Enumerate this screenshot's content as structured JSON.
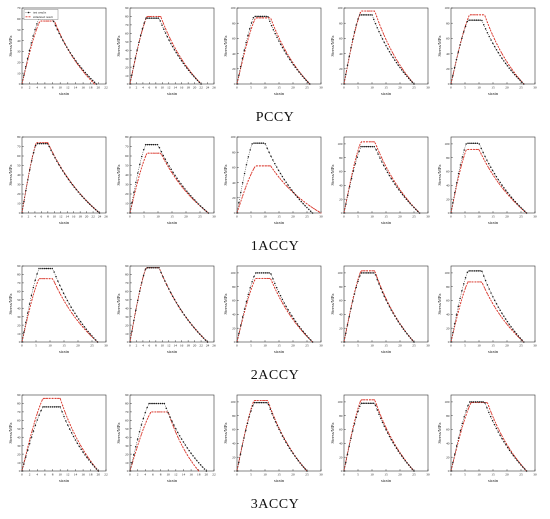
{
  "legend": {
    "test_label": "test results",
    "sim_label": "simulated result"
  },
  "colors": {
    "test": "#1a1a1a",
    "sim": "#d9362b"
  },
  "axis_text": {
    "xlabel": "strain",
    "ylabel": "Stress/MPa"
  },
  "groups": [
    "PCCY",
    "1ACCY",
    "2ACCY",
    "3ACCY"
  ],
  "chart_data": {
    "type": "line",
    "title": "",
    "xlabel": "strain",
    "ylabel": "Stress/MPa",
    "series_names": [
      "test results",
      "simulated result"
    ],
    "legend_position": "top-left of first panel",
    "grid": false,
    "panels": [
      {
        "group": "PCCY",
        "xmax": 22,
        "xticks": [
          0,
          2,
          4,
          6,
          8,
          10,
          12,
          14,
          16,
          18,
          20,
          22
        ],
        "ymax": 70,
        "yticks": [
          0,
          10,
          20,
          30,
          40,
          50,
          60,
          70
        ],
        "test_peak": 60,
        "test_pk": 8,
        "test_end": 19.5,
        "sim_peak": 58,
        "sim_pk": 8.5,
        "sim_end": 19
      },
      {
        "group": "PCCY",
        "xmax": 26,
        "xticks": [
          0,
          2,
          4,
          6,
          8,
          10,
          12,
          14,
          16,
          18,
          20,
          22,
          24,
          26
        ],
        "ymax": 90,
        "yticks": [
          0,
          10,
          20,
          30,
          40,
          50,
          60,
          70,
          80,
          90
        ],
        "test_peak": 78,
        "test_pk": 9,
        "test_end": 22,
        "sim_peak": 80,
        "sim_pk": 9.5,
        "sim_end": 22
      },
      {
        "group": "PCCY",
        "xmax": 30,
        "xticks": [
          0,
          5,
          10,
          15,
          20,
          25,
          30
        ],
        "ymax": 100,
        "yticks": [
          0,
          20,
          40,
          60,
          80,
          100
        ],
        "test_peak": 89,
        "test_pk": 11,
        "test_end": 26,
        "sim_peak": 87,
        "sim_pk": 12,
        "sim_end": 26
      },
      {
        "group": "PCCY",
        "xmax": 30,
        "xticks": [
          0,
          5,
          10,
          15,
          20,
          25,
          30
        ],
        "ymax": 100,
        "yticks": [
          0,
          20,
          40,
          60,
          80,
          100
        ],
        "test_peak": 91,
        "test_pk": 10,
        "test_end": 25,
        "sim_peak": 96,
        "sim_pk": 11,
        "sim_end": 25
      },
      {
        "group": "PCCY",
        "xmax": 30,
        "xticks": [
          0,
          5,
          10,
          15,
          20,
          25,
          30
        ],
        "ymax": 100,
        "yticks": [
          0,
          20,
          40,
          60,
          80,
          100
        ],
        "test_peak": 84,
        "test_pk": 11,
        "test_end": 26,
        "sim_peak": 91,
        "sim_pk": 12,
        "sim_end": 26
      },
      {
        "group": "1ACCY",
        "xmax": 26,
        "xticks": [
          0,
          2,
          4,
          6,
          8,
          10,
          12,
          14,
          16,
          18,
          20,
          22,
          24,
          26
        ],
        "ymax": 80,
        "yticks": [
          0,
          10,
          20,
          30,
          40,
          50,
          60,
          70,
          80
        ],
        "test_peak": 73,
        "test_pk": 8,
        "test_end": 24,
        "sim_peak": 74,
        "sim_pk": 8,
        "sim_end": 24
      },
      {
        "group": "1ACCY",
        "xmax": 30,
        "xticks": [
          0,
          5,
          10,
          15,
          20,
          25,
          30
        ],
        "ymax": 80,
        "yticks": [
          0,
          10,
          20,
          30,
          40,
          50,
          60,
          70,
          80
        ],
        "test_peak": 72,
        "test_pk": 10,
        "test_end": 28,
        "sim_peak": 63,
        "sim_pk": 11,
        "sim_end": 28
      },
      {
        "group": "1ACCY",
        "xmax": 30,
        "xticks": [
          0,
          5,
          10,
          15,
          20,
          25,
          30
        ],
        "ymax": 100,
        "yticks": [
          0,
          20,
          40,
          60,
          80,
          100
        ],
        "test_peak": 92,
        "test_pk": 10,
        "test_end": 27,
        "sim_peak": 62,
        "sim_pk": 12,
        "sim_end": 30
      },
      {
        "group": "1ACCY",
        "xmax": 30,
        "xticks": [
          0,
          5,
          10,
          15,
          20,
          25,
          30
        ],
        "ymax": 110,
        "yticks": [
          0,
          20,
          40,
          60,
          80,
          100
        ],
        "test_peak": 96,
        "test_pk": 11,
        "test_end": 27,
        "sim_peak": 103,
        "sim_pk": 11,
        "sim_end": 27
      },
      {
        "group": "1ACCY",
        "xmax": 30,
        "xticks": [
          0,
          5,
          10,
          15,
          20,
          25,
          30
        ],
        "ymax": 110,
        "yticks": [
          0,
          20,
          40,
          60,
          80,
          100
        ],
        "test_peak": 101,
        "test_pk": 10,
        "test_end": 27,
        "sim_peak": 92,
        "sim_pk": 10,
        "sim_end": 27
      },
      {
        "group": "2ACCY",
        "xmax": 30,
        "xticks": [
          0,
          5,
          10,
          15,
          20,
          25,
          30
        ],
        "ymax": 90,
        "yticks": [
          0,
          10,
          20,
          30,
          40,
          50,
          60,
          70,
          80,
          90
        ],
        "test_peak": 87,
        "test_pk": 11,
        "test_end": 27,
        "sim_peak": 75,
        "sim_pk": 11,
        "sim_end": 27
      },
      {
        "group": "2ACCY",
        "xmax": 26,
        "xticks": [
          0,
          2,
          4,
          6,
          8,
          10,
          12,
          14,
          16,
          18,
          20,
          22,
          24,
          26
        ],
        "ymax": 90,
        "yticks": [
          0,
          10,
          20,
          30,
          40,
          50,
          60,
          70,
          80,
          90
        ],
        "test_peak": 88,
        "test_pk": 9,
        "test_end": 24,
        "sim_peak": 88,
        "sim_pk": 9,
        "sim_end": 24
      },
      {
        "group": "2ACCY",
        "xmax": 30,
        "xticks": [
          0,
          5,
          10,
          15,
          20,
          25,
          30
        ],
        "ymax": 110,
        "yticks": [
          0,
          20,
          40,
          60,
          80,
          100
        ],
        "test_peak": 100,
        "test_pk": 12,
        "test_end": 27,
        "sim_peak": 92,
        "sim_pk": 12,
        "sim_end": 27
      },
      {
        "group": "2ACCY",
        "xmax": 30,
        "xticks": [
          0,
          5,
          10,
          15,
          20,
          25,
          30
        ],
        "ymax": 110,
        "yticks": [
          0,
          20,
          40,
          60,
          80,
          100
        ],
        "test_peak": 100,
        "test_pk": 11,
        "test_end": 25,
        "sim_peak": 103,
        "sim_pk": 11,
        "sim_end": 25
      },
      {
        "group": "2ACCY",
        "xmax": 30,
        "xticks": [
          0,
          5,
          10,
          15,
          20,
          25,
          30
        ],
        "ymax": 110,
        "yticks": [
          0,
          20,
          40,
          60,
          80,
          100
        ],
        "test_peak": 103,
        "test_pk": 11,
        "test_end": 26,
        "sim_peak": 87,
        "sim_pk": 11,
        "sim_end": 26
      },
      {
        "group": "3ACCY",
        "xmax": 22,
        "xticks": [
          0,
          2,
          4,
          6,
          8,
          10,
          12,
          14,
          16,
          18,
          20,
          22
        ],
        "ymax": 90,
        "yticks": [
          0,
          10,
          20,
          30,
          40,
          50,
          60,
          70,
          80,
          90
        ],
        "test_peak": 76,
        "test_pk": 10,
        "test_end": 20,
        "sim_peak": 86,
        "sim_pk": 10,
        "sim_end": 20
      },
      {
        "group": "3ACCY",
        "xmax": 22,
        "xticks": [
          0,
          2,
          4,
          6,
          8,
          10,
          12,
          14,
          16,
          18,
          20,
          22
        ],
        "ymax": 90,
        "yticks": [
          0,
          10,
          20,
          30,
          40,
          50,
          60,
          70,
          80,
          90
        ],
        "test_peak": 80,
        "test_pk": 9,
        "test_end": 20,
        "sim_peak": 70,
        "sim_pk": 10,
        "sim_end": 18
      },
      {
        "group": "3ACCY",
        "xmax": 30,
        "xticks": [
          0,
          5,
          10,
          15,
          20,
          25,
          30
        ],
        "ymax": 110,
        "yticks": [
          0,
          20,
          40,
          60,
          80,
          100
        ],
        "test_peak": 99,
        "test_pk": 11,
        "test_end": 25,
        "sim_peak": 102,
        "sim_pk": 11,
        "sim_end": 25
      },
      {
        "group": "3ACCY",
        "xmax": 30,
        "xticks": [
          0,
          5,
          10,
          15,
          20,
          25,
          30
        ],
        "ymax": 110,
        "yticks": [
          0,
          20,
          40,
          60,
          80,
          100
        ],
        "test_peak": 98,
        "test_pk": 11,
        "test_end": 25,
        "sim_peak": 103,
        "sim_pk": 11,
        "sim_end": 25
      },
      {
        "group": "3ACCY",
        "xmax": 30,
        "xticks": [
          0,
          5,
          10,
          15,
          20,
          25,
          30
        ],
        "ymax": 110,
        "yticks": [
          0,
          20,
          40,
          60,
          80,
          100
        ],
        "test_peak": 100,
        "test_pk": 12,
        "test_end": 27,
        "sim_peak": 99,
        "sim_pk": 13,
        "sim_end": 27
      }
    ]
  }
}
